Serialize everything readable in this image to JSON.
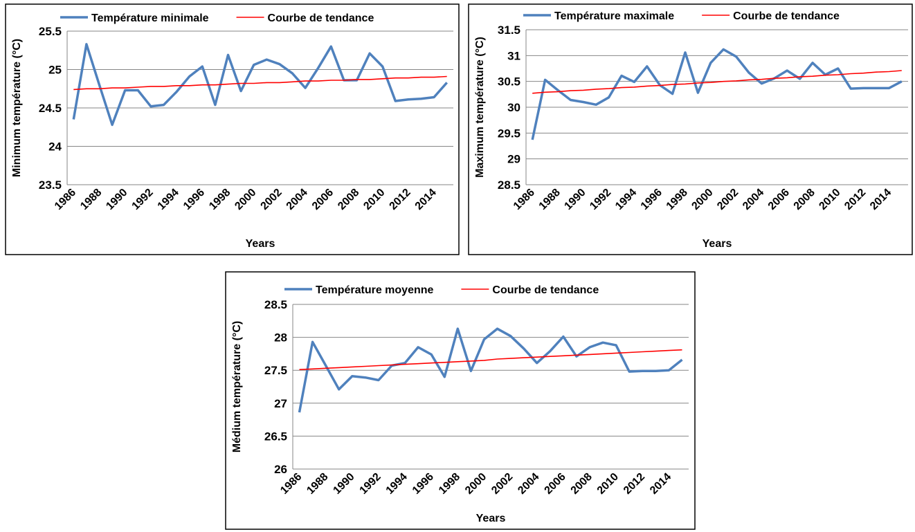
{
  "chart_data": [
    {
      "type": "line",
      "ylabel": "Minimum température (°C)",
      "xlabel": "Years",
      "legend": "top",
      "grid": true,
      "categories": [
        "1986",
        null,
        "1988",
        null,
        "1990",
        null,
        "1992",
        null,
        "1994",
        null,
        "1996",
        null,
        "1998",
        null,
        "2000",
        null,
        "2002",
        null,
        "2004",
        null,
        "2006",
        null,
        "2008",
        null,
        "2010",
        null,
        "2012",
        null,
        "2014",
        null
      ],
      "ylim": [
        23.5,
        25.5
      ],
      "yticks": [
        23.5,
        24,
        24.5,
        25,
        25.5
      ],
      "series": [
        {
          "name": "Température minimale",
          "color": "#4f81bd",
          "values": [
            24.35,
            25.33,
            24.8,
            24.28,
            24.73,
            24.73,
            24.52,
            24.54,
            24.71,
            24.91,
            25.04,
            24.54,
            25.19,
            24.72,
            25.06,
            25.13,
            25.07,
            24.95,
            24.76,
            25.02,
            25.3,
            24.86,
            24.86,
            25.21,
            25.04,
            24.59,
            24.61,
            24.62,
            24.64,
            24.83
          ]
        },
        {
          "name": "Courbe de tendance",
          "color": "#ff0000",
          "values": [
            24.74,
            24.75,
            24.75,
            24.76,
            24.76,
            24.77,
            24.78,
            24.78,
            24.79,
            24.79,
            24.8,
            24.8,
            24.81,
            24.82,
            24.82,
            24.83,
            24.83,
            24.84,
            24.85,
            24.85,
            24.86,
            24.86,
            24.87,
            24.87,
            24.88,
            24.89,
            24.89,
            24.9,
            24.9,
            24.91
          ]
        }
      ]
    },
    {
      "type": "line",
      "ylabel": "Maximum température (°C)",
      "xlabel": "Years",
      "legend": "top",
      "grid": true,
      "categories": [
        "1986",
        null,
        "1988",
        null,
        "1990",
        null,
        "1992",
        null,
        "1994",
        null,
        "1996",
        null,
        "1998",
        null,
        "2000",
        null,
        "2002",
        null,
        "2004",
        null,
        "2006",
        null,
        "2008",
        null,
        "2010",
        null,
        "2012",
        null,
        "2014",
        null
      ],
      "ylim": [
        28.5,
        31.5
      ],
      "yticks": [
        28.5,
        29,
        29.5,
        30,
        30.5,
        31,
        31.5
      ],
      "series": [
        {
          "name": "Température maximale",
          "color": "#4f81bd",
          "values": [
            29.37,
            30.53,
            30.33,
            30.14,
            30.1,
            30.05,
            30.19,
            30.61,
            30.49,
            30.79,
            30.43,
            30.26,
            31.06,
            30.28,
            30.86,
            31.12,
            30.98,
            30.67,
            30.46,
            30.56,
            30.71,
            30.55,
            30.86,
            30.63,
            30.75,
            30.36,
            30.37,
            30.37,
            30.37,
            30.5
          ]
        },
        {
          "name": "Courbe de tendance",
          "color": "#ff0000",
          "values": [
            30.27,
            30.29,
            30.3,
            30.32,
            30.33,
            30.35,
            30.36,
            30.38,
            30.39,
            30.41,
            30.42,
            30.44,
            30.45,
            30.47,
            30.48,
            30.5,
            30.51,
            30.53,
            30.54,
            30.56,
            30.57,
            30.59,
            30.6,
            30.62,
            30.63,
            30.65,
            30.66,
            30.68,
            30.69,
            30.71
          ]
        }
      ]
    },
    {
      "type": "line",
      "ylabel": "Médium température (°C)",
      "xlabel": "Years",
      "legend": "top",
      "grid": true,
      "categories": [
        "1986",
        null,
        "1988",
        null,
        "1990",
        null,
        "1992",
        null,
        "1994",
        null,
        "1996",
        null,
        "1998",
        null,
        "2000",
        null,
        "2002",
        null,
        "2004",
        null,
        "2006",
        null,
        "2008",
        null,
        "2010",
        null,
        "2012",
        null,
        "2014",
        null
      ],
      "ylim": [
        26,
        28.5
      ],
      "yticks": [
        26,
        26.5,
        27,
        27.5,
        28,
        28.5
      ],
      "series": [
        {
          "name": "Température moyenne",
          "color": "#4f81bd",
          "values": [
            26.86,
            27.93,
            27.57,
            27.21,
            27.41,
            27.39,
            27.35,
            27.57,
            27.61,
            27.85,
            27.74,
            27.4,
            28.13,
            27.49,
            27.97,
            28.13,
            28.02,
            27.83,
            27.61,
            27.79,
            28.01,
            27.71,
            27.85,
            27.92,
            27.88,
            27.48,
            27.49,
            27.49,
            27.5,
            27.66
          ]
        },
        {
          "name": "Courbe de tendance",
          "color": "#ff0000",
          "values": [
            27.51,
            27.52,
            27.53,
            27.54,
            27.55,
            27.56,
            27.57,
            27.58,
            27.59,
            27.6,
            27.61,
            27.62,
            27.63,
            27.64,
            27.65,
            27.67,
            27.68,
            27.69,
            27.7,
            27.71,
            27.72,
            27.73,
            27.74,
            27.75,
            27.76,
            27.77,
            27.78,
            27.79,
            27.8,
            27.81
          ]
        }
      ]
    }
  ]
}
